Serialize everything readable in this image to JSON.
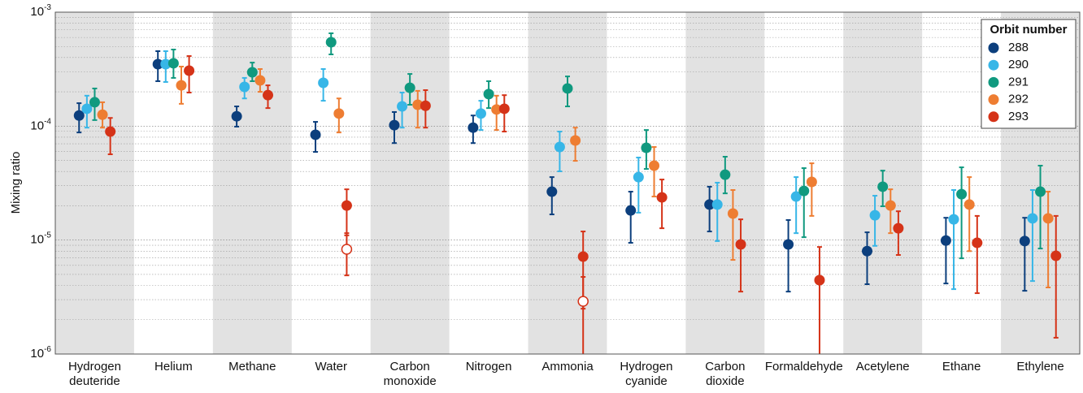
{
  "chart_data": {
    "type": "errorbar-scatter",
    "ylabel": "Mixing ratio",
    "log_y": true,
    "ylim": [
      1e-06,
      0.001
    ],
    "yticks": [
      {
        "value": 0.001,
        "label": "10",
        "sup": "-3"
      },
      {
        "value": 0.0001,
        "label": "10",
        "sup": "-4"
      },
      {
        "value": 1e-05,
        "label": "10",
        "sup": "-5"
      },
      {
        "value": 1e-06,
        "label": "10",
        "sup": "-6"
      }
    ],
    "minor_grid": true,
    "alternating_bands": true,
    "band_color": "#e2e2e2",
    "legend_title": "Orbit number",
    "legend_position": "top-right",
    "categories": [
      "Hydrogen deuteride",
      "Helium",
      "Methane",
      "Water",
      "Carbon monoxide",
      "Nitrogen",
      "Ammonia",
      "Hydrogen cyanide",
      "Carbon dioxide",
      "Formaldehyde",
      "Acetylene",
      "Ethane",
      "Ethylene"
    ],
    "series": [
      {
        "name": "288",
        "color": "#0c3f7d",
        "values": [
          0.000124,
          0.00035,
          0.000122,
          8.4e-05,
          0.000102,
          9.7e-05,
          2.66e-05,
          1.82e-05,
          2.05e-05,
          9.16e-06,
          8e-06,
          9.9e-06,
          9.8e-06
        ],
        "lower": [
          8.8e-05,
          0.000248,
          9.9e-05,
          5.94e-05,
          7.1e-05,
          7.1e-05,
          1.68e-05,
          9.46e-06,
          1.19e-05,
          3.53e-06,
          4.1e-06,
          4.16e-06,
          3.59e-06
        ],
        "upper": [
          0.000159,
          0.000455,
          0.000149,
          0.000109,
          0.000133,
          0.000124,
          3.57e-05,
          2.66e-05,
          2.94e-05,
          1.5e-05,
          1.17e-05,
          1.57e-05,
          1.57e-05
        ]
      },
      {
        "name": "290",
        "color": "#37b6e7",
        "values": [
          0.000142,
          0.00035,
          0.000221,
          0.00024,
          0.000149,
          0.000129,
          6.56e-05,
          3.57e-05,
          2.05e-05,
          2.41e-05,
          1.65e-05,
          1.52e-05,
          1.55e-05
        ],
        "lower": [
          9.7e-05,
          0.000244,
          0.000175,
          0.000167,
          9.7e-05,
          9.25e-05,
          4.01e-05,
          1.74e-05,
          9.8e-06,
          1.15e-05,
          8.9e-06,
          3.71e-06,
          4.37e-06
        ],
        "upper": [
          0.000185,
          0.000455,
          0.000265,
          0.000317,
          0.000197,
          0.000167,
          8.96e-05,
          5.3e-05,
          3.19e-05,
          3.57e-05,
          2.45e-05,
          2.75e-05,
          2.75e-05
        ]
      },
      {
        "name": "291",
        "color": "#10997f",
        "values": [
          0.000162,
          0.000356,
          0.000297,
          0.000545,
          0.000217,
          0.000191,
          0.000214,
          6.45e-05,
          3.75e-05,
          2.7e-05,
          2.94e-05,
          2.53e-05,
          2.66e-05
        ],
        "lower": [
          0.000113,
          0.000265,
          0.000248,
          0.000426,
          0.000154,
          0.000144,
          0.000149,
          4.21e-05,
          2.57e-05,
          1.06e-05,
          1.98e-05,
          6.92e-06,
          8.43e-06
        ],
        "upper": [
          0.000214,
          0.00047,
          0.000361,
          0.000653,
          0.000287,
          0.000248,
          0.000273,
          9.25e-05,
          5.39e-05,
          4.28e-05,
          4.07e-05,
          4.35e-05,
          4.5e-05
        ]
      },
      {
        "name": "292",
        "color": "#ee7d32",
        "values": [
          0.000126,
          0.000228,
          0.000252,
          0.000129,
          0.000154,
          0.00014,
          7.48e-05,
          4.5e-05,
          1.71e-05,
          3.24e-05,
          2.01e-05,
          2.05e-05,
          1.55e-05
        ],
        "lower": [
          9.7e-05,
          0.000157,
          0.0002,
          8.8e-05,
          9.7e-05,
          9.25e-05,
          4.96e-05,
          2.41e-05,
          6.7e-06,
          1.63e-05,
          1.15e-05,
          8e-06,
          3.84e-06
        ],
        "upper": [
          0.000162,
          0.000333,
          0.000317,
          0.000175,
          0.000204,
          0.000185,
          9.7e-05,
          6.56e-05,
          2.75e-05,
          4.72e-05,
          2.79e-05,
          3.57e-05,
          2.66e-05
        ]
      },
      {
        "name": "293",
        "color": "#d53318",
        "values": [
          8.96e-05,
          0.000307,
          0.000187,
          2.01e-05,
          0.000151,
          0.000142,
          7.16e-06,
          2.37e-05,
          9.16e-06,
          4.45e-06,
          1.27e-05,
          9.46e-06,
          7.28e-06
        ],
        "lower": [
          5.66e-05,
          0.000197,
          0.000144,
          1.1e-05,
          9.7e-05,
          8.96e-05,
          2.5e-06,
          1.27e-05,
          3.53e-06,
          5e-07,
          7.4e-06,
          3.42e-06,
          1.39e-06
        ],
        "upper": [
          0.000118,
          0.000412,
          0.000228,
          2.79e-05,
          0.000207,
          0.000187,
          1.19e-05,
          3.4e-05,
          1.52e-05,
          8.7e-06,
          1.79e-05,
          1.63e-05,
          1.63e-05
        ],
        "open_values": [
          null,
          null,
          null,
          8.3e-06,
          null,
          null,
          2.9e-06,
          null,
          null,
          null,
          null,
          null,
          null
        ],
        "open_lower": [
          null,
          null,
          null,
          4.9e-06,
          null,
          null,
          5e-07,
          null,
          null,
          null,
          null,
          null,
          null
        ],
        "open_upper": [
          null,
          null,
          null,
          1.15e-05,
          null,
          null,
          4.75e-06,
          null,
          null,
          null,
          null,
          null,
          null
        ]
      }
    ]
  }
}
